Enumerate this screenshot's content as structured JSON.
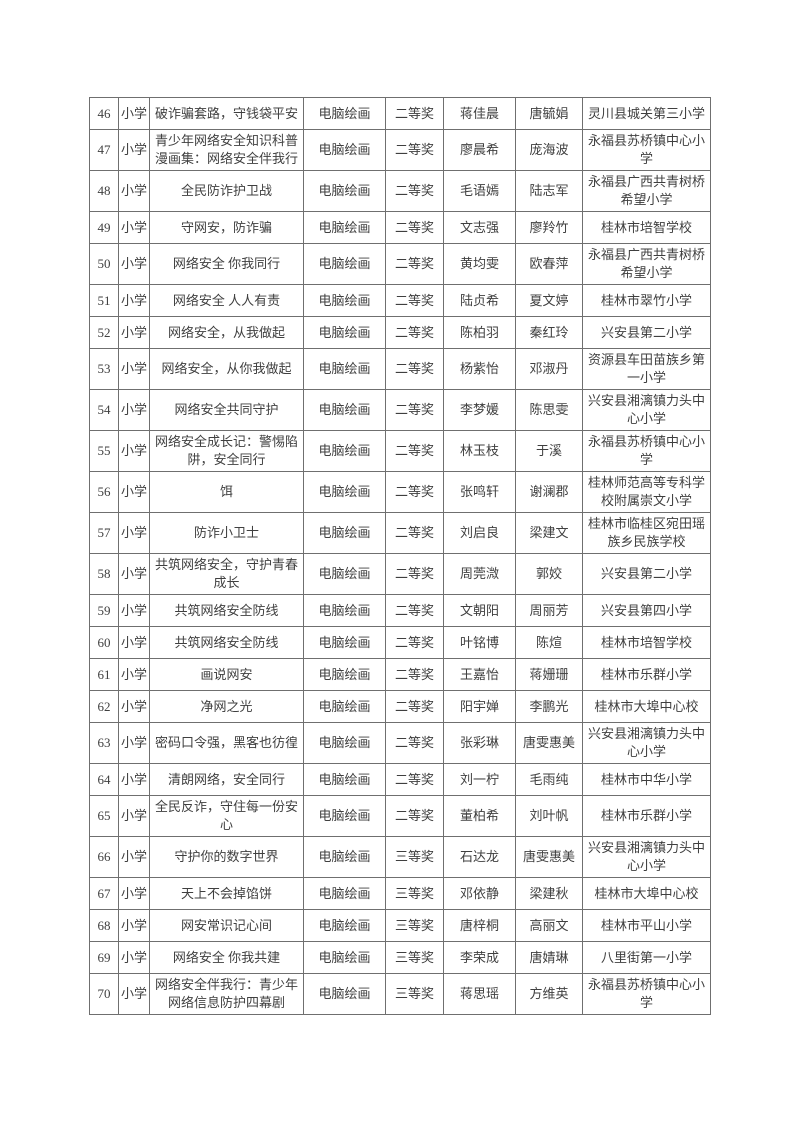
{
  "page": {
    "background_color": "#ffffff",
    "text_color": "#3f3f3f",
    "border_color": "#6f6f6f"
  },
  "table": {
    "columns": [
      "no",
      "level",
      "title",
      "category",
      "award",
      "author",
      "advisor",
      "school"
    ],
    "rows": [
      {
        "no": "46",
        "level": "小学",
        "title": "破诈骗套路，守钱袋平安",
        "category": "电脑绘画",
        "award": "二等奖",
        "author": "蒋佳晨",
        "advisor": "唐毓娟",
        "school": "灵川县城关第三小学"
      },
      {
        "no": "47",
        "level": "小学",
        "title": "青少年网络安全知识科普漫画集：网络安全伴我行",
        "category": "电脑绘画",
        "award": "二等奖",
        "author": "廖晨希",
        "advisor": "庞海波",
        "school": "永福县苏桥镇中心小学"
      },
      {
        "no": "48",
        "level": "小学",
        "title": "全民防诈护卫战",
        "category": "电脑绘画",
        "award": "二等奖",
        "author": "毛语嫣",
        "advisor": "陆志军",
        "school": "永福县广西共青树桥希望小学"
      },
      {
        "no": "49",
        "level": "小学",
        "title": "守网安，防诈骗",
        "category": "电脑绘画",
        "award": "二等奖",
        "author": "文志强",
        "advisor": "廖羚竹",
        "school": "桂林市培智学校"
      },
      {
        "no": "50",
        "level": "小学",
        "title": "网络安全 你我同行",
        "category": "电脑绘画",
        "award": "二等奖",
        "author": "黄均雯",
        "advisor": "欧春萍",
        "school": "永福县广西共青树桥希望小学"
      },
      {
        "no": "51",
        "level": "小学",
        "title": "网络安全 人人有责",
        "category": "电脑绘画",
        "award": "二等奖",
        "author": "陆贞希",
        "advisor": "夏文婷",
        "school": "桂林市翠竹小学"
      },
      {
        "no": "52",
        "level": "小学",
        "title": "网络安全，从我做起",
        "category": "电脑绘画",
        "award": "二等奖",
        "author": "陈柏羽",
        "advisor": "秦红玲",
        "school": "兴安县第二小学"
      },
      {
        "no": "53",
        "level": "小学",
        "title": "网络安全，从你我做起",
        "category": "电脑绘画",
        "award": "二等奖",
        "author": "杨紫怡",
        "advisor": "邓淑丹",
        "school": "资源县车田苗族乡第一小学"
      },
      {
        "no": "54",
        "level": "小学",
        "title": "网络安全共同守护",
        "category": "电脑绘画",
        "award": "二等奖",
        "author": "李梦媛",
        "advisor": "陈思雯",
        "school": "兴安县湘漓镇力头中心小学"
      },
      {
        "no": "55",
        "level": "小学",
        "title": "网络安全成长记：警惕陷阱，安全同行",
        "category": "电脑绘画",
        "award": "二等奖",
        "author": "林玉枝",
        "advisor": "于溪",
        "school": "永福县苏桥镇中心小学"
      },
      {
        "no": "56",
        "level": "小学",
        "title": "饵",
        "category": "电脑绘画",
        "award": "二等奖",
        "author": "张鸣轩",
        "advisor": "谢澜郡",
        "school": "桂林师范高等专科学校附属崇文小学"
      },
      {
        "no": "57",
        "level": "小学",
        "title": "防诈小卫士",
        "category": "电脑绘画",
        "award": "二等奖",
        "author": "刘启良",
        "advisor": "梁建文",
        "school": "桂林市临桂区宛田瑶族乡民族学校"
      },
      {
        "no": "58",
        "level": "小学",
        "title": "共筑网络安全，守护青春成长",
        "category": "电脑绘画",
        "award": "二等奖",
        "author": "周莞溦",
        "advisor": "郭姣",
        "school": "兴安县第二小学"
      },
      {
        "no": "59",
        "level": "小学",
        "title": "共筑网络安全防线",
        "category": "电脑绘画",
        "award": "二等奖",
        "author": "文朝阳",
        "advisor": "周丽芳",
        "school": "兴安县第四小学"
      },
      {
        "no": "60",
        "level": "小学",
        "title": "共筑网络安全防线",
        "category": "电脑绘画",
        "award": "二等奖",
        "author": "叶铭博",
        "advisor": "陈煊",
        "school": "桂林市培智学校"
      },
      {
        "no": "61",
        "level": "小学",
        "title": "画说网安",
        "category": "电脑绘画",
        "award": "二等奖",
        "author": "王嘉怡",
        "advisor": "蒋姗珊",
        "school": "桂林市乐群小学"
      },
      {
        "no": "62",
        "level": "小学",
        "title": "净网之光",
        "category": "电脑绘画",
        "award": "二等奖",
        "author": "阳宇婵",
        "advisor": "李鹏光",
        "school": "桂林市大埠中心校"
      },
      {
        "no": "63",
        "level": "小学",
        "title": "密码口令强，黑客也彷徨",
        "category": "电脑绘画",
        "award": "二等奖",
        "author": "张彩琳",
        "advisor": "唐雯惠美",
        "school": "兴安县湘漓镇力头中心小学"
      },
      {
        "no": "64",
        "level": "小学",
        "title": "清朗网络，安全同行",
        "category": "电脑绘画",
        "award": "二等奖",
        "author": "刘一柠",
        "advisor": "毛雨纯",
        "school": "桂林市中华小学"
      },
      {
        "no": "65",
        "level": "小学",
        "title": "全民反诈，守住每一份安心",
        "category": "电脑绘画",
        "award": "二等奖",
        "author": "董柏希",
        "advisor": "刘叶帆",
        "school": "桂林市乐群小学"
      },
      {
        "no": "66",
        "level": "小学",
        "title": "守护你的数字世界",
        "category": "电脑绘画",
        "award": "三等奖",
        "author": "石达龙",
        "advisor": "唐雯惠美",
        "school": "兴安县湘漓镇力头中心小学"
      },
      {
        "no": "67",
        "level": "小学",
        "title": "天上不会掉馅饼",
        "category": "电脑绘画",
        "award": "三等奖",
        "author": "邓依静",
        "advisor": "梁建秋",
        "school": "桂林市大埠中心校"
      },
      {
        "no": "68",
        "level": "小学",
        "title": "网安常识记心间",
        "category": "电脑绘画",
        "award": "三等奖",
        "author": "唐梓桐",
        "advisor": "高丽文",
        "school": "桂林市平山小学"
      },
      {
        "no": "69",
        "level": "小学",
        "title": "网络安全 你我共建",
        "category": "电脑绘画",
        "award": "三等奖",
        "author": "李荣成",
        "advisor": "唐婧琳",
        "school": "八里街第一小学"
      },
      {
        "no": "70",
        "level": "小学",
        "title": "网络安全伴我行：青少年网络信息防护四幕剧",
        "category": "电脑绘画",
        "award": "三等奖",
        "author": "蒋思瑶",
        "advisor": "方维英",
        "school": "永福县苏桥镇中心小学"
      }
    ]
  }
}
